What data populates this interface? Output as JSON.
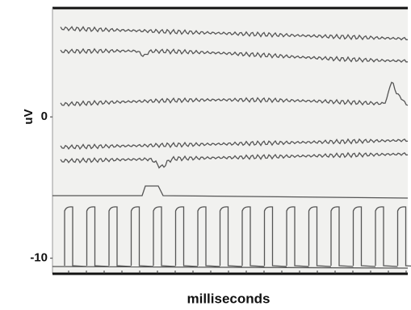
{
  "chart_data": {
    "type": "line",
    "ylabel": "uV",
    "xlabel": "milliseconds",
    "ylim": [
      -11.1,
      7.7
    ],
    "yticks": [
      0,
      -10
    ]
  }
}
